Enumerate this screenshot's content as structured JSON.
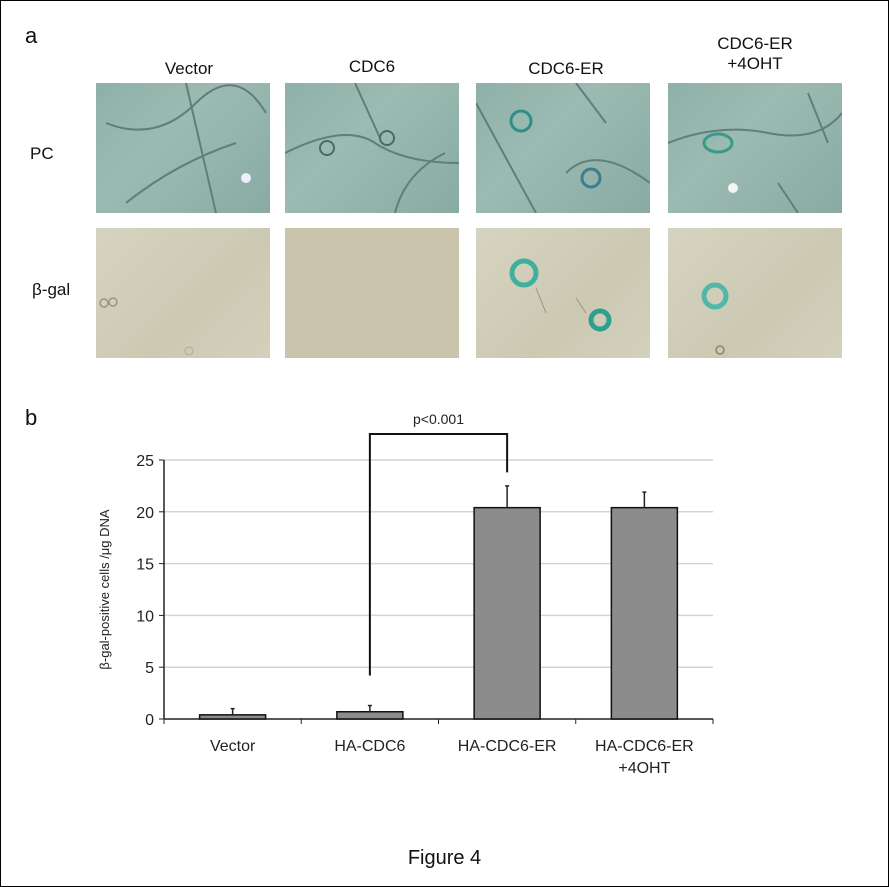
{
  "panel_a": {
    "letter": "a",
    "columns": [
      "Vector",
      "CDC6",
      "CDC6-ER",
      "CDC6-ER\n+4OHT"
    ],
    "column_lines": [
      [
        "Vector"
      ],
      [
        "CDC6"
      ],
      [
        "CDC6-ER"
      ],
      [
        "CDC6-ER",
        "+4OHT"
      ]
    ],
    "rows": [
      "PC",
      "β-gal"
    ]
  },
  "panel_b": {
    "letter": "b",
    "significance_label": "p<0.001"
  },
  "figure_caption": "Figure 4",
  "chart_data": {
    "type": "bar",
    "title": "",
    "categories": [
      "Vector",
      "HA-CDC6",
      "HA-CDC6-ER",
      "HA-CDC6-ER\n+4OHT"
    ],
    "category_lines": [
      [
        "Vector"
      ],
      [
        "HA-CDC6"
      ],
      [
        "HA-CDC6-ER"
      ],
      [
        "HA-CDC6-ER",
        "+4OHT"
      ]
    ],
    "values": [
      0.4,
      0.7,
      20.4,
      20.4
    ],
    "error_plus": [
      0.6,
      0.6,
      2.1,
      1.5
    ],
    "xlabel": "",
    "ylabel": "β-gal-positive cells /μg DNA",
    "ylim": [
      0,
      25
    ],
    "yticks": [
      0,
      5,
      10,
      15,
      20,
      25
    ],
    "grid": true,
    "legend": null,
    "bar_color": "#8c8c8c",
    "annotations": [
      {
        "type": "bracket",
        "from": "HA-CDC6",
        "to": "HA-CDC6-ER",
        "label": "p<0.001"
      }
    ]
  }
}
